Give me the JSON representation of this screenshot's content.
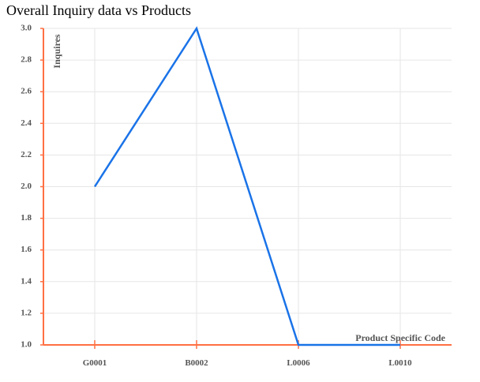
{
  "chart_data": {
    "type": "line",
    "title": "Overall Inquiry data vs Products",
    "xlabel": "Product Specific Code",
    "ylabel": "Inquires",
    "categories": [
      "G0001",
      "B0002",
      "L0006",
      "L0010"
    ],
    "series": [
      {
        "values": [
          2.0,
          3.0,
          1.0,
          1.0
        ]
      }
    ],
    "ylim": [
      1.0,
      3.0
    ],
    "yticks": [
      "1.0",
      "1.2",
      "1.4",
      "1.6",
      "1.8",
      "2.0",
      "2.2",
      "2.4",
      "2.6",
      "2.8",
      "3.0"
    ],
    "grid": true,
    "legend": "none",
    "colors": {
      "line": "#1a73e8",
      "axis": "#ff7043",
      "grid": "#e6e6e6"
    }
  }
}
